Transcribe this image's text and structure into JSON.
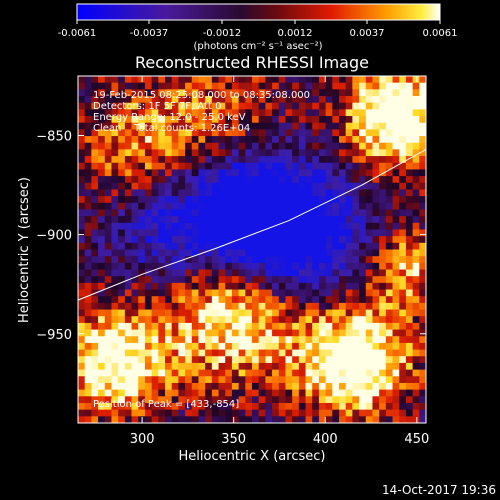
{
  "colorbar": {
    "ticks": [
      "-0.0061",
      "-0.0037",
      "-0.0012",
      "0.0012",
      "0.0037",
      "0.0061"
    ],
    "units": "(photons cm⁻² s⁻¹ asec⁻²)",
    "vmin": -0.0061,
    "vmax": 0.0061
  },
  "title": "Reconstructed RHESSI Image",
  "annotations": {
    "line1": "19-Feb-2015 08:25:08.000 to 08:35:08.000",
    "line2": "Detectors: 1F 5F 7F, Att 0",
    "line3": "Energy Range: 12.0 - 25.0 keV",
    "line4": "Clean    Total counts: 1.26E+04",
    "peak": "Position of Peak = [433,-854]"
  },
  "timestamp": "14-Oct-2017 19:36",
  "chart_data": {
    "type": "heatmap",
    "title": "Reconstructed RHESSI Image",
    "xlabel": "Heliocentric X (arcsec)",
    "ylabel": "Heliocentric Y (arcsec)",
    "xlim": [
      265,
      455
    ],
    "ylim": [
      -995,
      -820
    ],
    "xticks": [
      300,
      350,
      400,
      450
    ],
    "yticks": [
      -850,
      -900,
      -950
    ],
    "xtick_labels": [
      "300",
      "350",
      "400",
      "450"
    ],
    "ytick_labels": [
      "−850",
      "−900",
      "−950"
    ],
    "colorscale": "blue-purple-red-yellow-white",
    "limb_curve": [
      [
        265,
        -933
      ],
      [
        300,
        -920
      ],
      [
        340,
        -907
      ],
      [
        380,
        -893
      ],
      [
        420,
        -875
      ],
      [
        455,
        -857
      ]
    ],
    "peak": [
      433,
      -854
    ]
  }
}
